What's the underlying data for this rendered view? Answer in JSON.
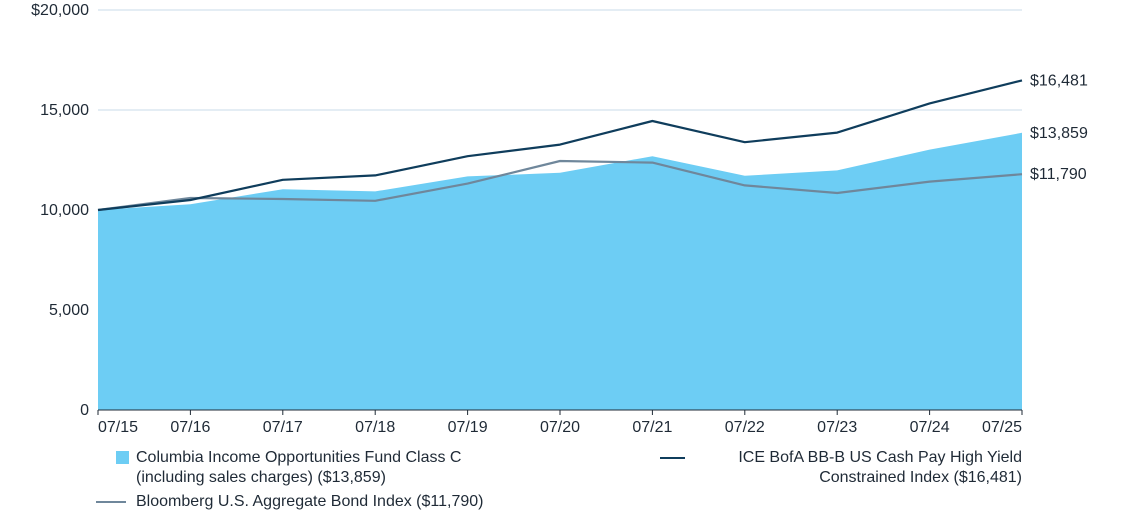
{
  "chart_data": {
    "type": "area",
    "categories": [
      "07/15",
      "07/16",
      "07/17",
      "07/18",
      "07/19",
      "07/20",
      "07/21",
      "07/22",
      "07/23",
      "07/24",
      "07/25"
    ],
    "series": [
      {
        "name": "Columbia Income Opportunities Fund Class C\n(including sales charges) ($13,859)",
        "kind": "area",
        "color": "#6dcdf4",
        "values": [
          10000,
          10290,
          11040,
          10930,
          11680,
          11860,
          12690,
          11710,
          11980,
          13020,
          13859
        ]
      },
      {
        "name": "ICE BofA BB-B US Cash Pay High Yield\nConstrained Index ($16,481)",
        "kind": "line",
        "color": "#0f3d5c",
        "values": [
          10000,
          10500,
          11510,
          11730,
          12690,
          13270,
          14450,
          13390,
          13870,
          15330,
          16481
        ]
      },
      {
        "name": "Bloomberg U.S. Aggregate Bond Index ($11,790)",
        "kind": "line",
        "color": "#6f879b",
        "values": [
          10000,
          10600,
          10550,
          10460,
          11320,
          12450,
          12370,
          11230,
          10850,
          11420,
          11790
        ]
      }
    ],
    "end_labels": [
      "$13,859",
      "$16,481",
      "$11,790"
    ],
    "y_ticks": [
      {
        "value": 0,
        "label": "0"
      },
      {
        "value": 5000,
        "label": "5,000"
      },
      {
        "value": 10000,
        "label": "10,000"
      },
      {
        "value": 15000,
        "label": "15,000"
      },
      {
        "value": 20000,
        "label": "$20,000"
      }
    ],
    "ylim": [
      0,
      20000
    ],
    "grid": true,
    "legend_position": "bottom"
  }
}
